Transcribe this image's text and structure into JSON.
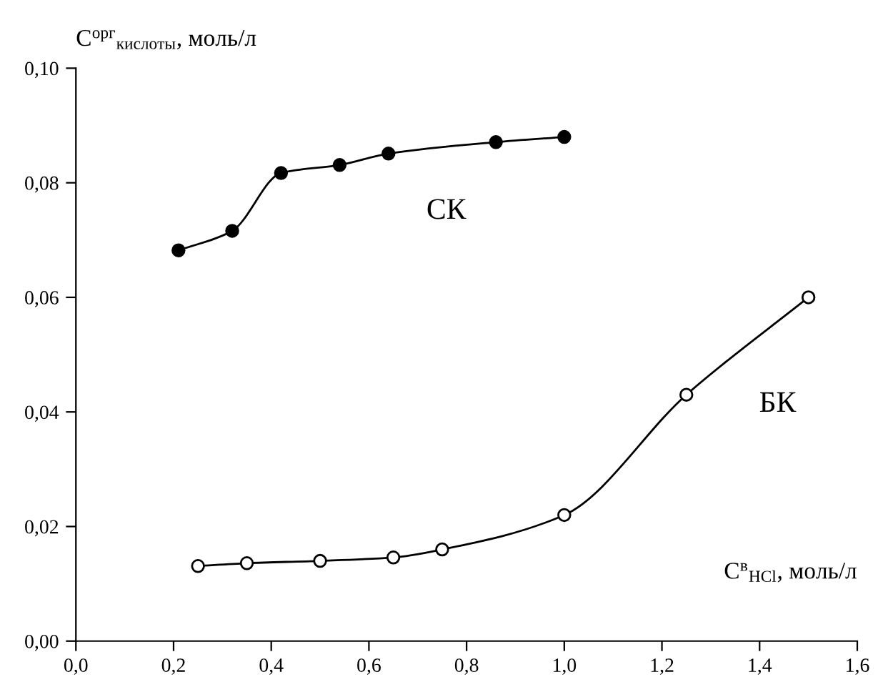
{
  "chart_data": {
    "type": "line",
    "xlabel": "C$^{в}$$_{HCl}$, моль/л",
    "ylabel": "C$^{орг}$$_{кислоты}$, моль/л",
    "xlim": [
      0,
      1.6
    ],
    "xticks": [
      {
        "value": 0,
        "label": "0,0"
      },
      {
        "value": 0.2,
        "label": "0,2"
      },
      {
        "value": 0.4,
        "label": "0,4"
      },
      {
        "value": 0.6,
        "label": "0,6"
      },
      {
        "value": 0.8,
        "label": "0,8"
      },
      {
        "value": 1.0,
        "label": "1,0"
      },
      {
        "value": 1.2,
        "label": "1,2"
      },
      {
        "value": 1.4,
        "label": "1,4"
      },
      {
        "value": 1.6,
        "label": "1,6"
      }
    ],
    "ylim": [
      0,
      0.1
    ],
    "yticks": [
      {
        "value": 0,
        "label": "0,00"
      },
      {
        "value": 0.02,
        "label": "0,02"
      },
      {
        "value": 0.04,
        "label": "0,04"
      },
      {
        "value": 0.06,
        "label": "0,06"
      },
      {
        "value": 0.08,
        "label": "0,08"
      },
      {
        "value": 0.1,
        "label": "0,10"
      }
    ],
    "grid": false,
    "legend": false,
    "marker": "circle",
    "line_style": "solid",
    "series": [
      {
        "name": "СК",
        "color": "#000000",
        "x": [
          0.21,
          0.32,
          0.42,
          0.54,
          0.64,
          0.86,
          1.0
        ],
        "values": [
          0.0682,
          0.0716,
          0.0817,
          0.0831,
          0.0851,
          0.0871,
          0.088
        ]
      },
      {
        "name": "БК",
        "color": "#ffffff",
        "x": [
          0.25,
          0.35,
          0.5,
          0.65,
          0.75,
          1.0,
          1.25,
          1.5
        ],
        "values": [
          0.0131,
          0.0136,
          0.014,
          0.0146,
          0.016,
          0.022,
          0.043,
          0.06
        ]
      }
    ]
  }
}
